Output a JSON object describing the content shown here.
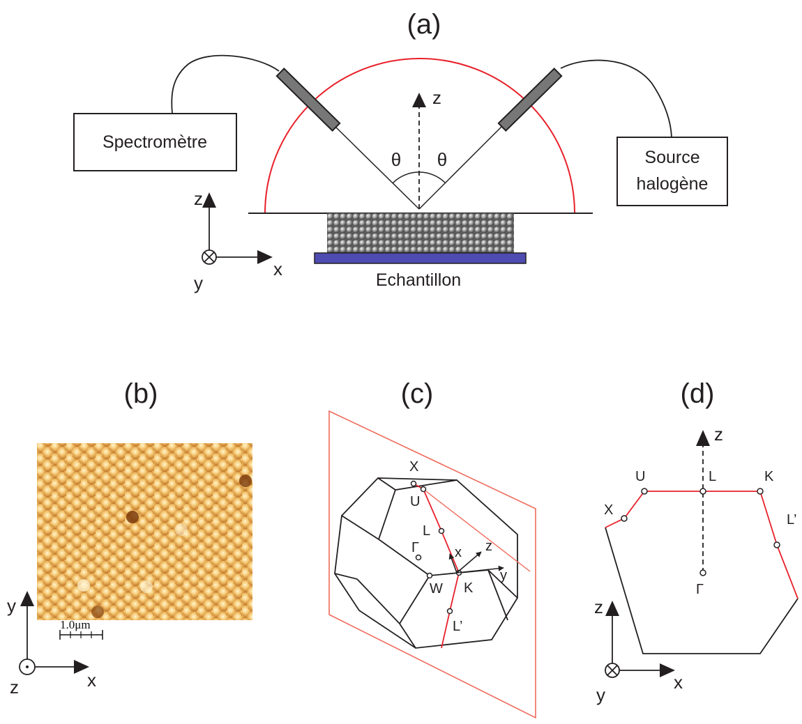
{
  "panel_a": {
    "label": "(a)",
    "spectrometer": "Spectromètre",
    "source_line1": "Source",
    "source_line2": "halogène",
    "sample": "Echantillon",
    "angle_left": "θ",
    "angle_right": "θ",
    "axis_z": "z",
    "frame": {
      "z": "z",
      "x": "x",
      "y": "y"
    }
  },
  "panel_b": {
    "label": "(b)",
    "scale_bar": "1.0μm",
    "frame": {
      "y": "y",
      "x": "x",
      "z": "z"
    }
  },
  "panel_c": {
    "label": "(c)",
    "points": {
      "X": "X",
      "U": "U",
      "L": "L",
      "Gamma": "Γ",
      "W": "W",
      "K": "K",
      "Lp": "L’"
    },
    "axes": {
      "x": "x",
      "y": "y",
      "z": "z"
    }
  },
  "panel_d": {
    "label": "(d)",
    "points": {
      "U": "U",
      "L": "L",
      "K": "K",
      "X": "X",
      "Lp": "L’",
      "Gamma": "Γ"
    },
    "axis_z": "z",
    "frame": {
      "z": "z",
      "x": "x",
      "y": "y"
    }
  },
  "colors": {
    "red": "#e8202a",
    "salmon": "#ef6a5a",
    "sample": "#4e4bb1",
    "fiber": "#777777",
    "afm_dark": "#b96a1c",
    "afm_light": "#fbe7b0"
  }
}
